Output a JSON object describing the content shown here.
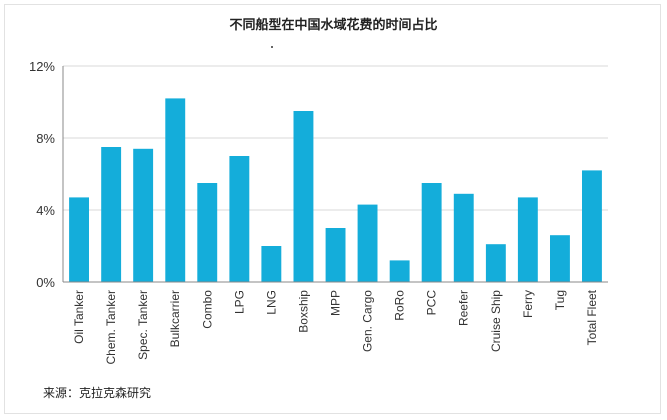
{
  "chart_data": {
    "type": "bar",
    "title": "不同船型在中国水域花费的时间占比",
    "categories": [
      "Oil Tanker",
      "Chem. Tanker",
      "Spec. Tanker",
      "Bulkcarrier",
      "Combo",
      "LPG",
      "LNG",
      "Boxship",
      "MPP",
      "Gen. Cargo",
      "RoRo",
      "PCC",
      "Reefer",
      "Cruise Ship",
      "Ferry",
      "Tug",
      "Total Fleet"
    ],
    "values": [
      4.7,
      7.5,
      7.4,
      10.2,
      5.5,
      7.0,
      2.0,
      9.5,
      3.0,
      4.3,
      1.2,
      5.5,
      4.9,
      2.1,
      4.7,
      2.6,
      6.2
    ],
    "ylim": [
      0,
      12
    ],
    "yticks": [
      0,
      4,
      8,
      12
    ],
    "ytick_labels": [
      "0%",
      "4%",
      "8%",
      "12%"
    ],
    "grid": true,
    "bar_color": "#14ADDA",
    "xlabel": "",
    "ylabel": ""
  },
  "source_note": "来源：克拉克森研究"
}
